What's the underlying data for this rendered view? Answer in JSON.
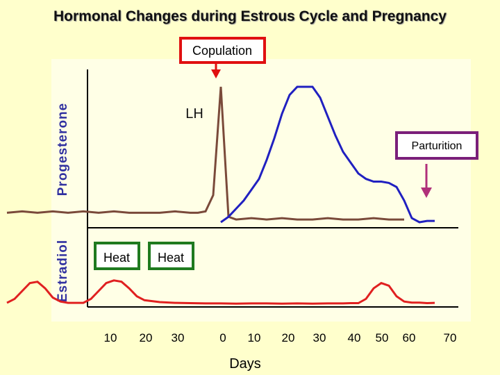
{
  "chart_data": {
    "type": "line",
    "title": "Hormonal Changes during Estrous Cycle and Pregnancy",
    "xlabel": "Days",
    "tick_labels": [
      "10",
      "20",
      "30",
      "0",
      "10",
      "20",
      "30",
      "40",
      "50",
      "60",
      "70"
    ],
    "ylabel_top": "Progesterone",
    "ylabel_bottom": "Estradiol",
    "annotations": {
      "copulation": "Copulation",
      "lh": "LH",
      "parturition": "Parturition",
      "heat1": "Heat",
      "heat2": "Heat"
    },
    "series": [
      {
        "name": "Progesterone",
        "color": "#2020c0",
        "note": "relative level, 0-100",
        "points": [
          [
            0,
            0
          ],
          [
            0.5,
            4
          ],
          [
            1,
            10
          ],
          [
            1.5,
            16
          ],
          [
            2,
            24
          ],
          [
            2.5,
            32
          ],
          [
            3,
            46
          ],
          [
            3.5,
            62
          ],
          [
            4,
            80
          ],
          [
            4.5,
            94
          ],
          [
            5,
            100
          ],
          [
            5.5,
            100
          ],
          [
            6,
            100
          ],
          [
            6.5,
            92
          ],
          [
            7,
            78
          ],
          [
            7.5,
            64
          ],
          [
            8,
            52
          ],
          [
            8.5,
            44
          ],
          [
            9,
            36
          ],
          [
            9.5,
            32
          ],
          [
            10,
            30
          ],
          [
            10.5,
            30
          ],
          [
            11,
            29
          ],
          [
            11.5,
            26
          ],
          [
            12,
            16
          ],
          [
            12.5,
            3
          ],
          [
            13,
            0
          ],
          [
            13.5,
            1
          ],
          [
            14,
            1
          ]
        ]
      },
      {
        "name": "LH",
        "color": "#7a4a3a",
        "note": "relative level, 0-100",
        "points": [
          [
            -14,
            7
          ],
          [
            -13,
            8
          ],
          [
            -12,
            7
          ],
          [
            -11,
            8
          ],
          [
            -10,
            7
          ],
          [
            -9,
            8
          ],
          [
            -8,
            7
          ],
          [
            -7,
            8
          ],
          [
            -6,
            7
          ],
          [
            -5,
            7
          ],
          [
            -4,
            7
          ],
          [
            -3,
            8
          ],
          [
            -2,
            7
          ],
          [
            -1.5,
            7
          ],
          [
            -1,
            8
          ],
          [
            -0.5,
            20
          ],
          [
            0,
            100
          ],
          [
            0.5,
            4
          ],
          [
            1,
            2
          ],
          [
            2,
            3
          ],
          [
            3,
            2
          ],
          [
            4,
            3
          ],
          [
            5,
            2
          ],
          [
            6,
            2
          ],
          [
            7,
            3
          ],
          [
            8,
            2
          ],
          [
            9,
            2
          ],
          [
            10,
            3
          ],
          [
            11,
            2
          ],
          [
            12,
            2
          ]
        ]
      },
      {
        "name": "Estradiol",
        "color": "#e02020",
        "note": "relative level, 0-100",
        "points": [
          [
            -14,
            5
          ],
          [
            -13.5,
            20
          ],
          [
            -13,
            50
          ],
          [
            -12.5,
            80
          ],
          [
            -12,
            85
          ],
          [
            -11.5,
            60
          ],
          [
            -11,
            25
          ],
          [
            -10.5,
            10
          ],
          [
            -10,
            5
          ],
          [
            -9.5,
            5
          ],
          [
            -9,
            5
          ],
          [
            -8.5,
            20
          ],
          [
            -8,
            50
          ],
          [
            -7.5,
            80
          ],
          [
            -7,
            90
          ],
          [
            -6.5,
            85
          ],
          [
            -6,
            60
          ],
          [
            -5.5,
            30
          ],
          [
            -5,
            15
          ],
          [
            -4,
            8
          ],
          [
            -3,
            5
          ],
          [
            -2,
            4
          ],
          [
            -1,
            3
          ],
          [
            0,
            3
          ],
          [
            1,
            2
          ],
          [
            2,
            3
          ],
          [
            3,
            3
          ],
          [
            4,
            2
          ],
          [
            5,
            3
          ],
          [
            6,
            2
          ],
          [
            7,
            3
          ],
          [
            8,
            3
          ],
          [
            8.5,
            4
          ],
          [
            9,
            4
          ],
          [
            9.5,
            20
          ],
          [
            10,
            60
          ],
          [
            10.5,
            80
          ],
          [
            11,
            70
          ],
          [
            11.5,
            30
          ],
          [
            12,
            10
          ],
          [
            12.5,
            6
          ],
          [
            13,
            6
          ],
          [
            13.5,
            4
          ],
          [
            14,
            5
          ]
        ]
      }
    ]
  },
  "colors": {
    "background": "#ffffcc",
    "panel": "#ffffe6",
    "copulation_box": "#e01010",
    "parturition_box": "#7a1f7a",
    "heat_box": "#1f7a1f",
    "arrow_copulation": "#e01010",
    "arrow_parturition": "#b0307a"
  }
}
